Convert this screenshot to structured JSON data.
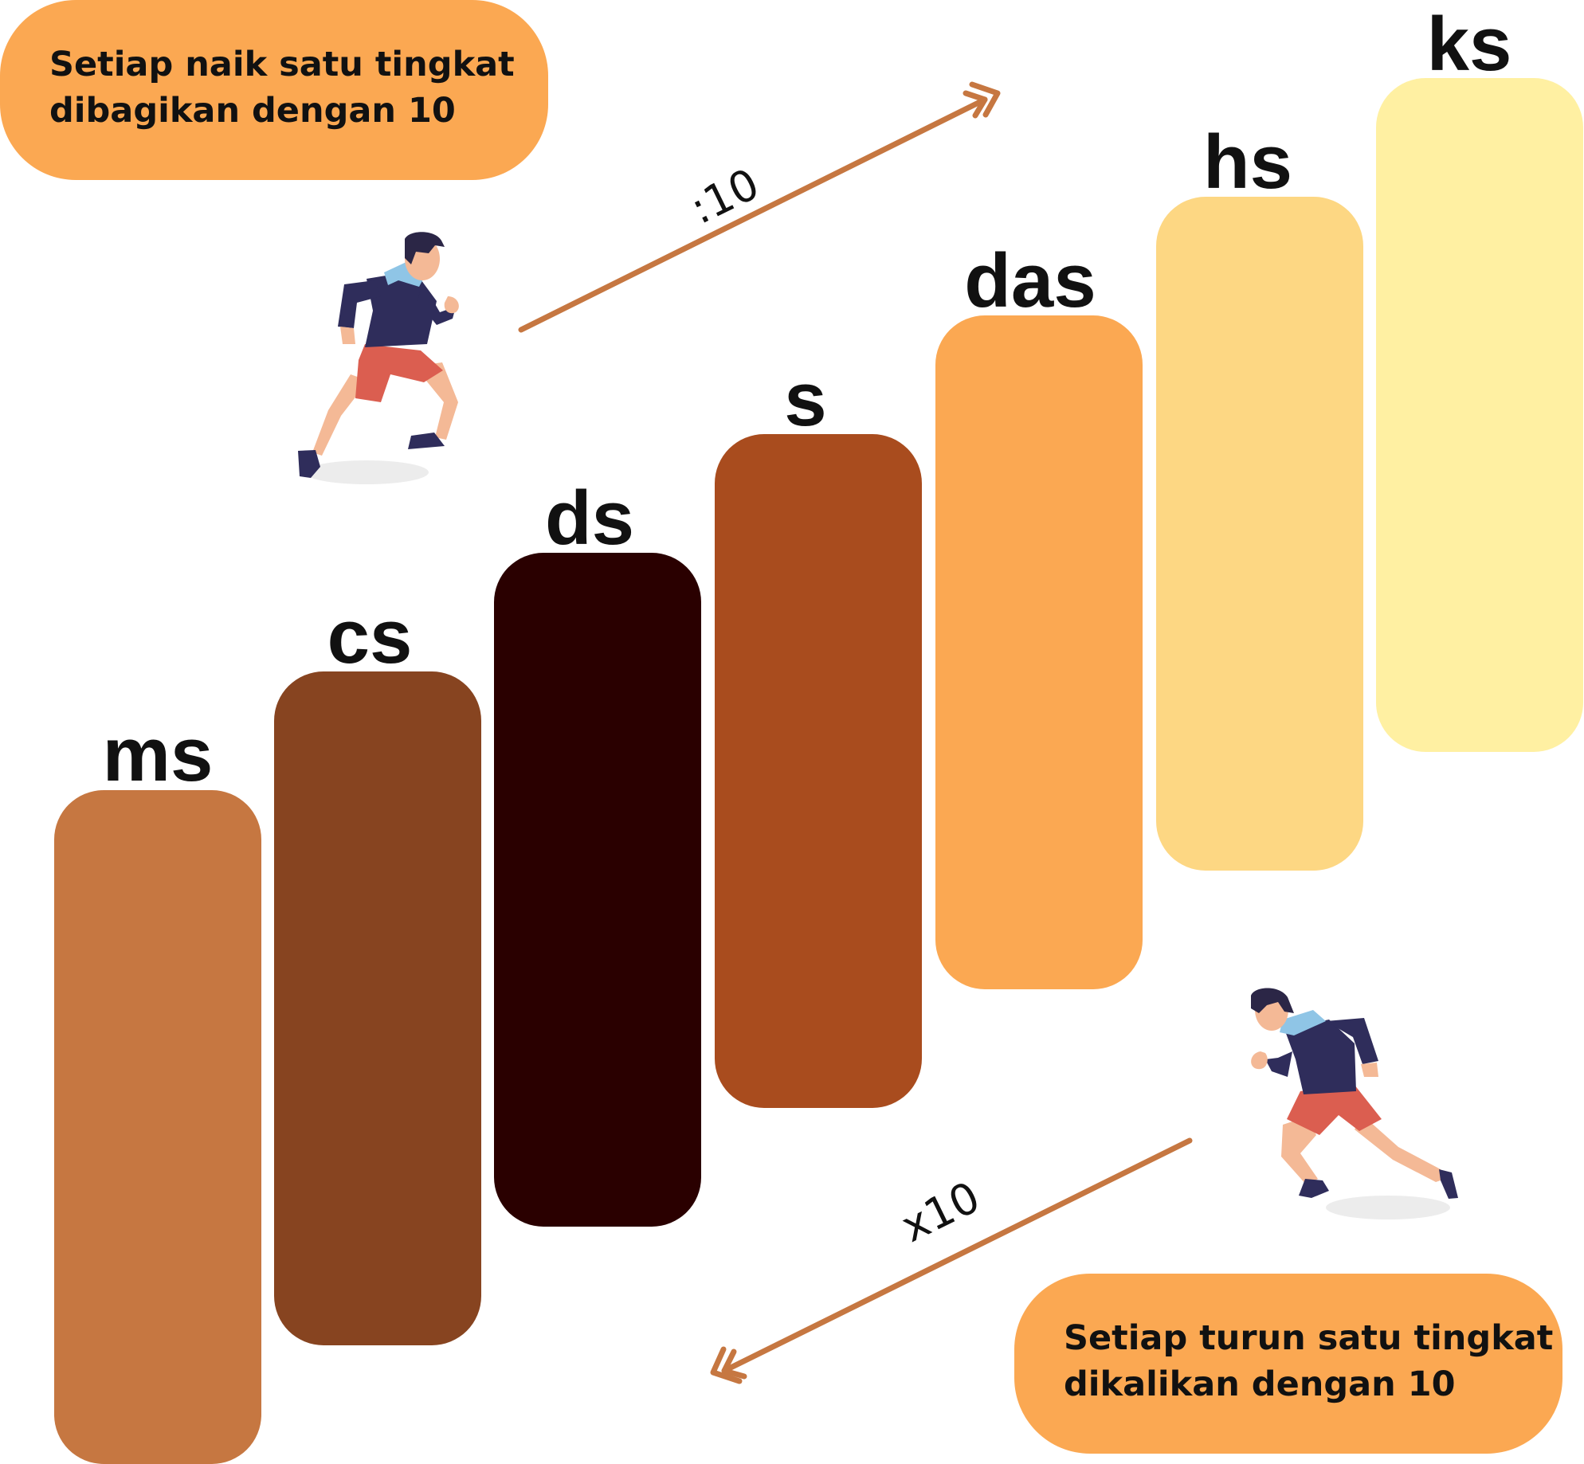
{
  "callouts": {
    "up": {
      "line1": "Setiap naik satu tingkat",
      "line2": "dibagikan dengan 10"
    },
    "down": {
      "line1": "Setiap turun satu tingkat",
      "line2": "dikalikan dengan 10"
    }
  },
  "operations": {
    "up": ":10",
    "down": "x10"
  },
  "steps": [
    {
      "label": "ms",
      "color": "#C67741"
    },
    {
      "label": "cs",
      "color": "#874420"
    },
    {
      "label": "ds",
      "color": "#2A0000"
    },
    {
      "label": "s",
      "color": "#A94C1E"
    },
    {
      "label": "das",
      "color": "#FBA852"
    },
    {
      "label": "hs",
      "color": "#FDD783"
    },
    {
      "label": "ks",
      "color": "#FFF0A2"
    }
  ],
  "colors": {
    "arrow": "#C67741",
    "callout": "#FBA852",
    "runner_shirt": "#2F2D5B",
    "runner_shorts": "#DB5E50",
    "runner_skin": "#F4B996",
    "runner_scarf": "#8FC5E6",
    "runner_hair": "#2B2646"
  },
  "icons": [
    "runner-up-icon",
    "runner-down-icon",
    "arrow-up-icon",
    "arrow-down-icon"
  ]
}
